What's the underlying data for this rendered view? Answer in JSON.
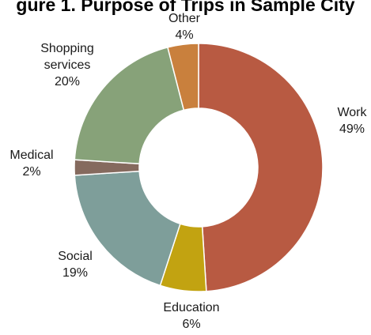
{
  "chart_data": {
    "type": "pie",
    "title": "gure 1. Purpose of Trips in Sample City",
    "categories": [
      "Work",
      "Education",
      "Social",
      "Medical",
      "Shopping services",
      "Other"
    ],
    "values": [
      49,
      6,
      19,
      2,
      20,
      4
    ],
    "value_labels": [
      "49%",
      "6%",
      "19%",
      "2%",
      "20%",
      "4%"
    ],
    "label_lines": [
      [
        "Work"
      ],
      [
        "Education"
      ],
      [
        "Social"
      ],
      [
        "Medical"
      ],
      [
        "Shopping",
        "services"
      ],
      [
        "Other"
      ]
    ],
    "colors": [
      "#B85A42",
      "#C2A311",
      "#7E9E9A",
      "#856A5E",
      "#87A279",
      "#C9803D"
    ],
    "legend": "none",
    "donut": true,
    "start": "top",
    "direction": "clockwise"
  }
}
